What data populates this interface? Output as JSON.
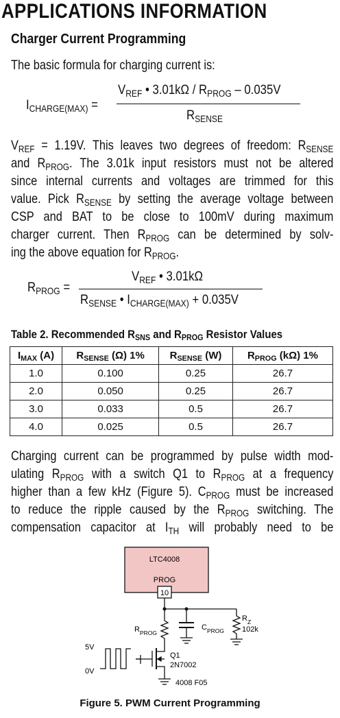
{
  "header": {
    "title": "APPLICATIONS INFORMATION"
  },
  "section": {
    "heading": "Charger Current Programming"
  },
  "intro": "The basic formula for charging current is:",
  "equation1": {
    "lhs": [
      "I",
      {
        "sub": "CHARGE(MAX)"
      },
      " ="
    ],
    "numerator": [
      "V",
      {
        "sub": "REF"
      },
      " • 3.01kΩ / R",
      {
        "sub": "PROG"
      },
      " – 0.035V"
    ],
    "denominator": [
      "R",
      {
        "sub": "SENSE"
      }
    ]
  },
  "paragraph1": [
    [
      "V",
      {
        "sub": "REF"
      },
      " = 1.19V. This leaves two degrees of freedom: R",
      {
        "sub": "SENSE"
      }
    ],
    [
      "and R",
      {
        "sub": "PROG"
      },
      ". The 3.01k input resistors must not be altered"
    ],
    [
      "since internal currents and voltages are trimmed for this"
    ],
    [
      "value. Pick R",
      {
        "sub": "SENSE"
      },
      " by setting the average voltage between"
    ],
    [
      "CSP and BAT to be close to 100mV during maximum"
    ],
    [
      "charger current. Then R",
      {
        "sub": "PROG"
      },
      " can be determined by solv-"
    ],
    [
      "ing the above equation for R",
      {
        "sub": "PROG"
      },
      "."
    ]
  ],
  "equation2": {
    "lhs": [
      "R",
      {
        "sub": "PROG"
      },
      " ="
    ],
    "numerator": [
      "V",
      {
        "sub": "REF"
      },
      " • 3.01kΩ"
    ],
    "denominator": [
      "R",
      {
        "sub": "SENSE"
      },
      " • I",
      {
        "sub": "CHARGE(MAX)"
      },
      " + 0.035V"
    ]
  },
  "table": {
    "caption": [
      "Table 2. Recommended R",
      {
        "sub": "SNS"
      },
      " and R",
      {
        "sub": "PROG"
      },
      " Resistor Values"
    ],
    "columns": [
      [
        "I",
        {
          "sub": "MAX"
        },
        " (A)"
      ],
      [
        "R",
        {
          "sub": "SENSE"
        },
        " (Ω) 1%"
      ],
      [
        "R",
        {
          "sub": "SENSE"
        },
        " (W)"
      ],
      [
        "R",
        {
          "sub": "PROG"
        },
        " (kΩ) 1%"
      ]
    ],
    "rows": [
      [
        "1.0",
        "0.100",
        "0.25",
        "26.7"
      ],
      [
        "2.0",
        "0.050",
        "0.25",
        "26.7"
      ],
      [
        "3.0",
        "0.033",
        "0.5",
        "26.7"
      ],
      [
        "4.0",
        "0.025",
        "0.5",
        "26.7"
      ]
    ]
  },
  "paragraph2": [
    [
      "Charging current can be programmed by pulse width mod-"
    ],
    [
      "ulating R",
      {
        "sub": "PROG"
      },
      " with a switch Q1 to R",
      {
        "sub": "PROG"
      },
      " at a frequency"
    ],
    [
      "higher than a few kHz (Figure 5). C",
      {
        "sub": "PROG"
      },
      " must be increased"
    ],
    [
      "to reduce the ripple caused by the R",
      {
        "sub": "PROG"
      },
      " switching. The"
    ],
    [
      "compensation capacitor at I",
      {
        "sub": "TH"
      },
      " will probably need to be"
    ]
  ],
  "figure": {
    "chip": "LTC4008",
    "pin_name": "PROG",
    "pin_number": "10",
    "r_prog": [
      "R",
      {
        "sub": "PROG"
      }
    ],
    "c_prog": [
      "C",
      {
        "sub": "PROG"
      }
    ],
    "r_z": [
      "R",
      {
        "sub": "Z"
      }
    ],
    "r_z_value": "102k",
    "high": "5V",
    "low": "0V",
    "transistor": "Q1",
    "part": "2N7002",
    "code": "4008 F05",
    "caption": "Figure 5. PWM Current Programming"
  }
}
